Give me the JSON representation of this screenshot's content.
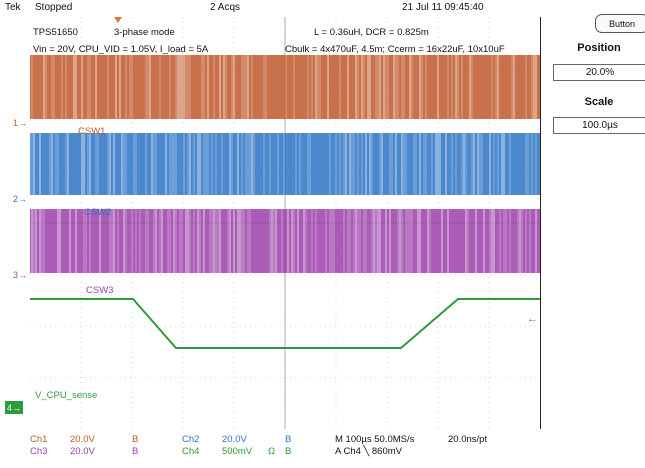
{
  "top_bar": {
    "brand": "Tek",
    "state": "Stopped",
    "acqs": "2 Acqs",
    "datetime": "21 Jul 11 09:45:40"
  },
  "annotations": {
    "device": "TPS51650",
    "mode": "3-phase mode",
    "conditions": "Vin = 20V, CPU_VID = 1.05V, I_load = 5A",
    "inductor": "L = 0.36uH, DCR = 0.825m",
    "caps": "Cbulk = 4x470uF, 4.5m;  Ccerm = 16x22uF, 10x10uF"
  },
  "traces": {
    "csw1": "CSW1",
    "csw2": "CSW2",
    "csw3": "CSW3",
    "vcpu": "V_CPU_sense"
  },
  "channel_markers": {
    "ch1": "1",
    "ch2": "2",
    "ch3": "3",
    "ch4": "4"
  },
  "colors": {
    "ch1": "#c0582a",
    "ch2": "#2c73c4",
    "ch3": "#9b3fa9",
    "ch4": "#2e9b3a"
  },
  "bottom": {
    "row1": {
      "ch1": "Ch1",
      "ch1_scale": "20.0V",
      "ch1_bw": "B",
      "ch2": "Ch2",
      "ch2_scale": "20.0V",
      "ch2_bw": "B",
      "timebase": "M 100µs 50.0MS/s",
      "resolution": "20.0ns/pt"
    },
    "row2": {
      "ch3": "Ch3",
      "ch3_scale": "20.0V",
      "ch3_bw": "B",
      "ch4": "Ch4",
      "ch4_scale": "500mV",
      "ch4_unit": "Ω",
      "ch4_bw": "B",
      "trigger": "A  Ch4  ╲  860mV"
    }
  },
  "side_panel": {
    "button_label": "Button",
    "position_label": "Position",
    "position_value": "20.0%",
    "scale_label": "Scale",
    "scale_value": "100.0µs"
  }
}
